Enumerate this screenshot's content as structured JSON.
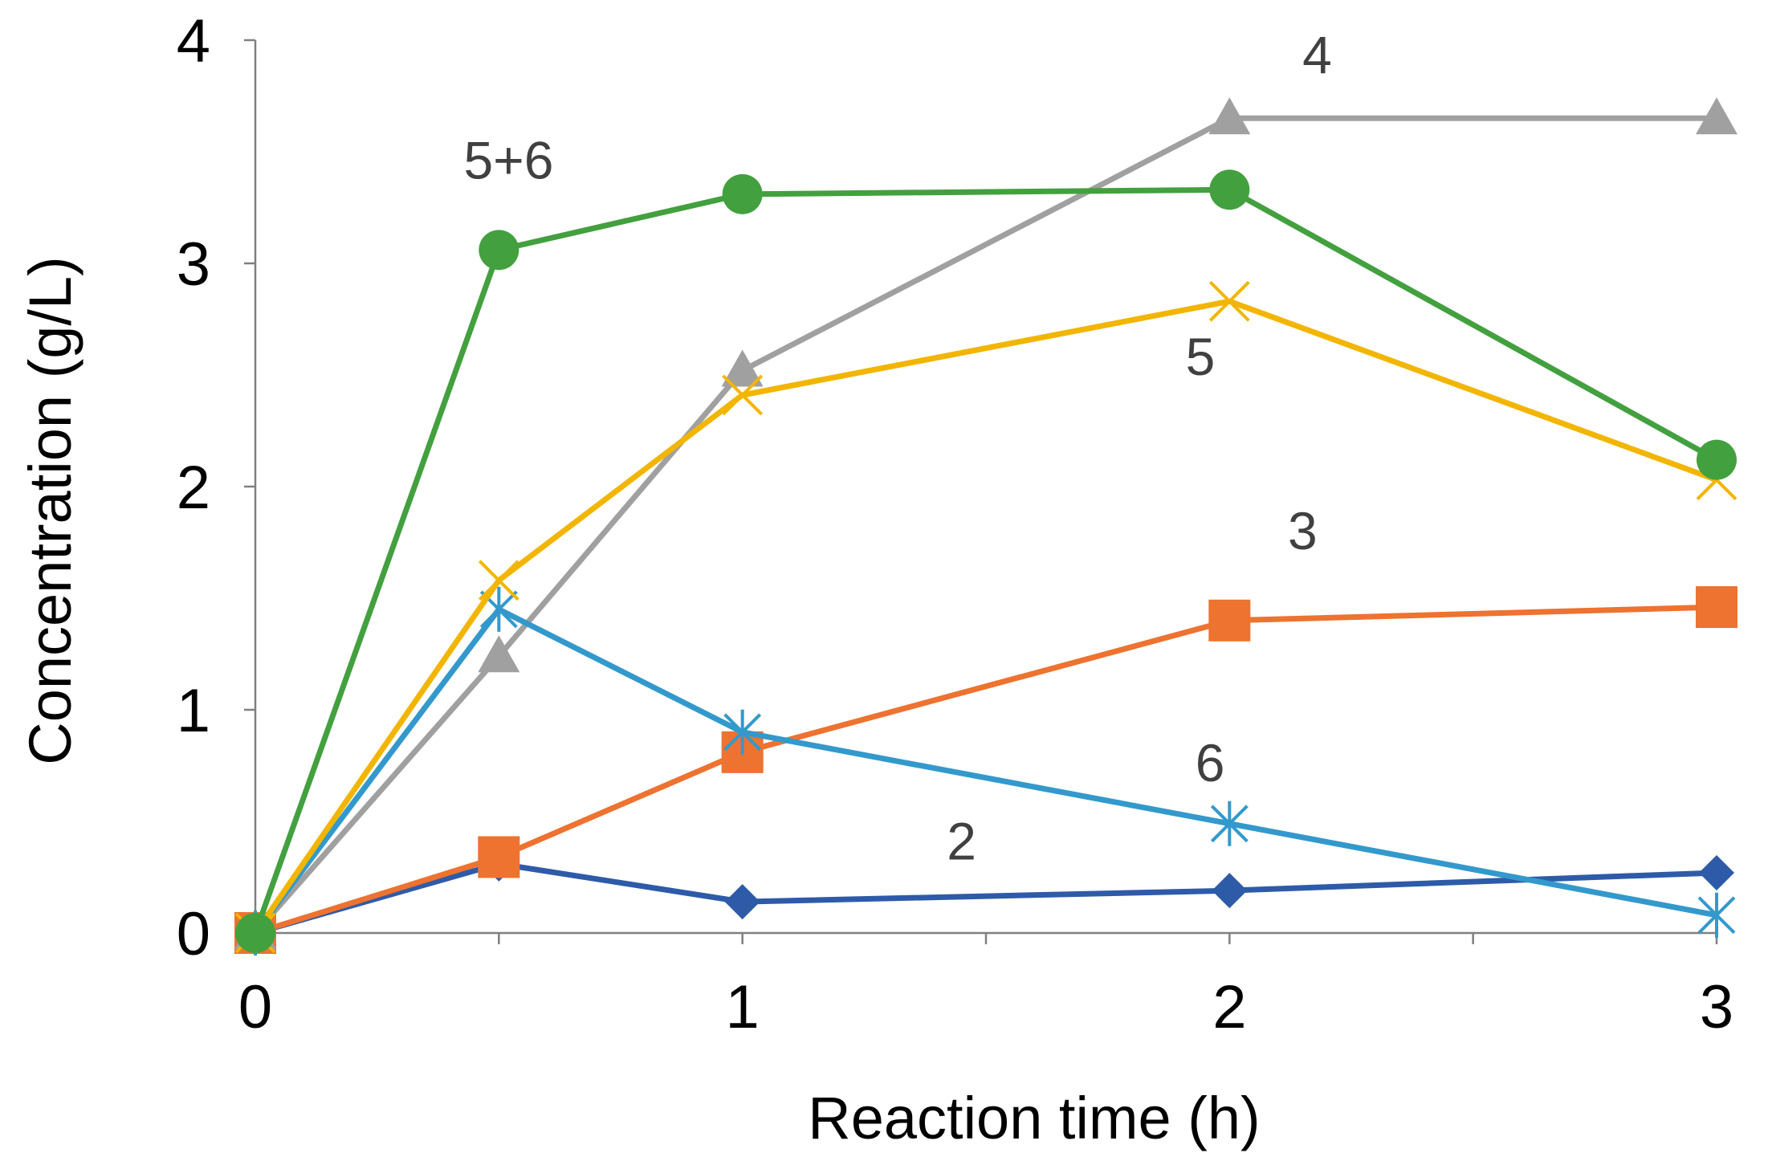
{
  "chart_data": {
    "type": "line",
    "title": "",
    "xlabel": "Reaction time (h)",
    "ylabel": "Concentration (g/L)",
    "xlim": [
      0,
      3
    ],
    "ylim": [
      0,
      4
    ],
    "x_ticks": [
      0,
      1,
      2,
      3
    ],
    "x_minor_ticks": [
      0.5,
      1.5,
      2.5
    ],
    "y_ticks": [
      0,
      1,
      2,
      3,
      4
    ],
    "grid": false,
    "x_tick_labels": [
      "0",
      "1",
      "2",
      "3"
    ],
    "y_tick_labels": [
      "0",
      "1",
      "2",
      "3",
      "4"
    ],
    "series": [
      {
        "name": "2",
        "label": "2",
        "color": "#2E5BA8",
        "marker": "diamond",
        "x": [
          0,
          0.5,
          1,
          2,
          3
        ],
        "y": [
          0,
          0.31,
          0.14,
          0.19,
          0.27
        ],
        "label_at": [
          1.45,
          0.33
        ]
      },
      {
        "name": "3",
        "label": "3",
        "color": "#EE7230",
        "marker": "square",
        "x": [
          0,
          0.5,
          1,
          2,
          3
        ],
        "y": [
          0,
          0.34,
          0.81,
          1.4,
          1.46
        ],
        "label_at": [
          2.15,
          1.72
        ]
      },
      {
        "name": "4",
        "label": "4",
        "color": "#A0A0A0",
        "marker": "triangle",
        "x": [
          0,
          0.5,
          1,
          2,
          3
        ],
        "y": [
          0,
          1.24,
          2.52,
          3.65,
          3.65
        ],
        "label_at": [
          2.18,
          3.85
        ]
      },
      {
        "name": "6",
        "label": "6",
        "color": "#3399CC",
        "marker": "asterisk",
        "x": [
          0,
          0.5,
          1,
          2,
          3
        ],
        "y": [
          0,
          1.45,
          0.9,
          0.49,
          0.08
        ],
        "label_at": [
          1.96,
          0.68
        ]
      },
      {
        "name": "5",
        "label": "5",
        "color": "#F2B500",
        "marker": "x",
        "x": [
          0,
          0.5,
          1,
          2,
          3
        ],
        "y": [
          0,
          1.58,
          2.41,
          2.83,
          2.03
        ],
        "label_at": [
          1.94,
          2.5
        ]
      },
      {
        "name": "5+6",
        "label": "5+6",
        "color": "#43A03F",
        "marker": "circle",
        "x": [
          0,
          0.5,
          1,
          2,
          3
        ],
        "y": [
          0,
          3.06,
          3.31,
          3.33,
          2.12
        ],
        "label_at": [
          0.52,
          3.38
        ]
      }
    ]
  }
}
